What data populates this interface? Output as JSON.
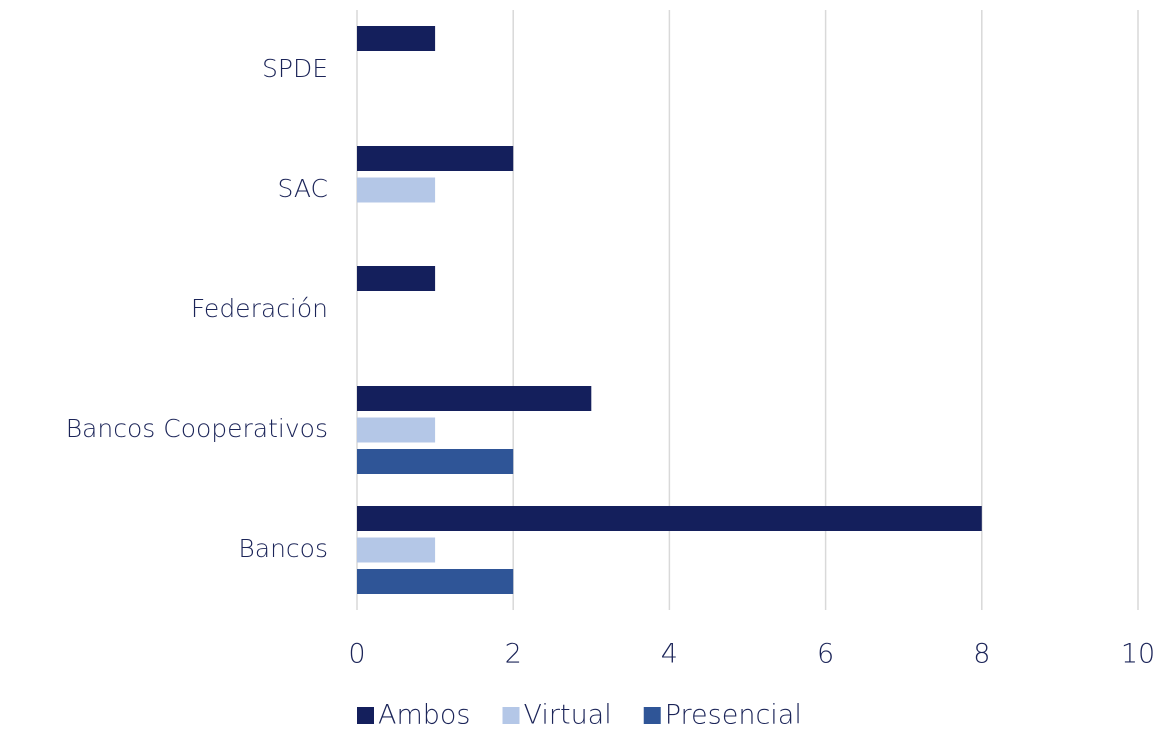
{
  "chart_data": {
    "type": "barh",
    "categories": [
      "SPDE",
      "SAC",
      "Federación",
      "Bancos Cooperativos",
      "Bancos"
    ],
    "series": [
      {
        "name": "Ambos",
        "color": "#141f5c",
        "values": [
          1,
          2,
          1,
          3,
          8
        ]
      },
      {
        "name": "Virtual",
        "color": "#b4c7e7",
        "values": [
          0,
          1,
          0,
          1,
          1
        ]
      },
      {
        "name": "Presencial",
        "color": "#2f5597",
        "values": [
          0,
          0,
          0,
          2,
          2
        ]
      }
    ],
    "xlim": [
      0,
      10
    ],
    "xticks": [
      0,
      2,
      4,
      6,
      8,
      10
    ],
    "grid": true,
    "legend": "bottom"
  }
}
